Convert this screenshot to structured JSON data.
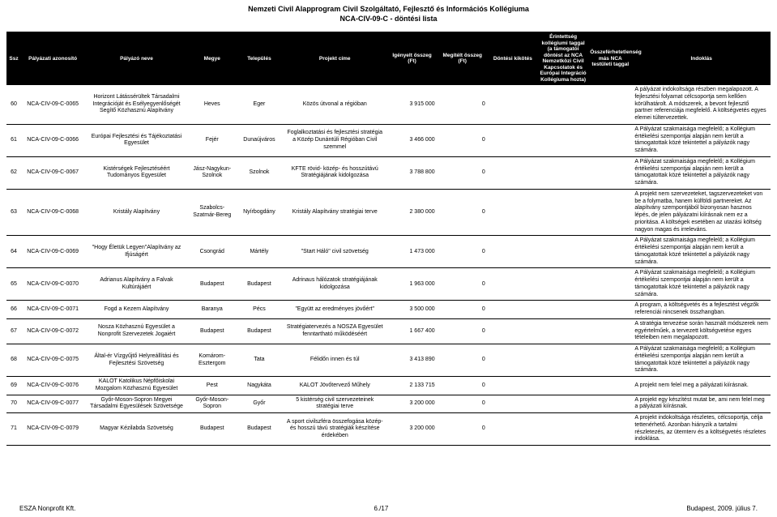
{
  "title_line1": "Nemzeti Civil Alapprogram Civil Szolgáltató, Fejlesztő és Információs Kollégiuma",
  "title_line2": "NCA-CIV-09-C - döntési lista",
  "columns": [
    "Ssz",
    "Pályázati azonosító",
    "Pályázó neve",
    "Megye",
    "Település",
    "Projekt címe",
    "Igényelt összeg (Ft)",
    "Megítélt összeg (Ft)",
    "Döntési kikötés",
    "Érintettség kollégiumi taggal (a támogatói döntést az NCA Nemzetközi Civil Kapcsolatok és Európai Integráció Kollégiuma hozta)",
    "Összeférhetetlenség más NCA testületi taggal",
    "Indoklás"
  ],
  "rows": [
    {
      "ssz": "60",
      "id": "NCA-CIV-09-C-0065",
      "name": "Horizont Látássérültek Társadalmi Integrációját és Esélyegyenlőségét Segítő Közhasznú Alapítvány",
      "megye": "Heves",
      "telepules": "Eger",
      "projekt": "Közös útvonal a régióban",
      "igenyelt": "3 915 000",
      "megitelt": "0",
      "kikotes": "",
      "erint": "",
      "ossz": "",
      "indoklas": "A pályázat indokoltsága részben megalapozott. A fejlesztési folyamat célcsoportja sem kellően körülhatárolt. A módszerek, a bevont fejlesztő partner referenciája megfelelő. A költségvetés egyes elemei túltervezettek."
    },
    {
      "ssz": "61",
      "id": "NCA-CIV-09-C-0066",
      "name": "Európai Fejlesztési és Tájékoztatási Egyesület",
      "megye": "Fejér",
      "telepules": "Dunaújváros",
      "projekt": "Foglalkoztatási és fejlesztési stratégia a Közép Dunántúli Régióban Civil szemmel",
      "igenyelt": "3 466 000",
      "megitelt": "0",
      "kikotes": "",
      "erint": "",
      "ossz": "",
      "indoklas": "A Pályázat szakmaisága megfelelő; a Kollégium értékelési szempontjai alapján nem került a támogatottak közé tekintettel a pályázók nagy számára."
    },
    {
      "ssz": "62",
      "id": "NCA-CIV-09-C-0067",
      "name": "Kistérségek Fejlesztéséért Tudományos Egyesület",
      "megye": "Jász-Nagykun-Szolnok",
      "telepules": "Szolnok",
      "projekt": "KFTE rövid- közép- és hosszútávú Stratégiájának kidolgozása",
      "igenyelt": "3 788 800",
      "megitelt": "0",
      "kikotes": "",
      "erint": "",
      "ossz": "",
      "indoklas": "A Pályázat szakmaisága megfelelő; a Kollégium értékelési szempontjai alapján nem került a támogatottak közé tekintettel a pályázók nagy számára."
    },
    {
      "ssz": "63",
      "id": "NCA-CIV-09-C-0068",
      "name": "Kristály Alapítvány",
      "megye": "Szabolcs-Szatmár-Bereg",
      "telepules": "Nyírbogdány",
      "projekt": "Kristály Alapítvány stratégiai terve",
      "igenyelt": "2 380 000",
      "megitelt": "0",
      "kikotes": "",
      "erint": "",
      "ossz": "",
      "indoklas": "A projekt nem szervezeteket, tagszervezeteket von be a folymatba, hanem külföldi partnereket. Az alapítvány szempontjából bizonyosan hasznos lépés, de jelen pályázatni kiírásnak nem ez a prioritása. A költségek esetében az utazási költség nagyon magas és irreleváns."
    },
    {
      "ssz": "64",
      "id": "NCA-CIV-09-C-0069",
      "name": "\"Hogy Életük Legyen\"Alapítvány az Ifjúságért",
      "megye": "Csongrád",
      "telepules": "Mártély",
      "projekt": "\"Start Háló\" civil szövetség",
      "igenyelt": "1 473 000",
      "megitelt": "0",
      "kikotes": "",
      "erint": "",
      "ossz": "",
      "indoklas": "A Pályázat szakmaisága megfelelő; a Kollégium értékelési szempontjai alapján nem került a támogatottak közé tekintettel a pályázók nagy számára."
    },
    {
      "ssz": "65",
      "id": "NCA-CIV-09-C-0070",
      "name": "Adrianus Alapítvány a Falvak Kultúrájáért",
      "megye": "Budapest",
      "telepules": "Budapest",
      "projekt": "Adrinaus hálózatok stratégiájának kidolgozása",
      "igenyelt": "1 963 000",
      "megitelt": "0",
      "kikotes": "",
      "erint": "",
      "ossz": "",
      "indoklas": "A Pályázat szakmaisága megfelelő; a Kollégium értékelési szempontjai alapján nem került a támogatottak közé tekintettel a pályázók nagy számára."
    },
    {
      "ssz": "66",
      "id": "NCA-CIV-09-C-0071",
      "name": "Fogd a Kezem Alapítvány",
      "megye": "Baranya",
      "telepules": "Pécs",
      "projekt": "\"Együtt az eredményes jövőért\"",
      "igenyelt": "3 500 000",
      "megitelt": "0",
      "kikotes": "",
      "erint": "",
      "ossz": "",
      "indoklas": "A program, a költségvetés és a fejlesztést végzők referenciái nincsenek összhangban."
    },
    {
      "ssz": "67",
      "id": "NCA-CIV-09-C-0072",
      "name": "Nosza Közhasznú Egyesület a Nonprofit Szervezetek Jogaiért",
      "megye": "Budapest",
      "telepules": "Budapest",
      "projekt": "Stratégiatervezés a NOSZA Egyesület fenntartható működéséért",
      "igenyelt": "1 667 400",
      "megitelt": "0",
      "kikotes": "",
      "erint": "",
      "ossz": "",
      "indoklas": "A stratégia tervezése során használt módszerek nem egyértelműek, a tervezett költségvetése egyes tételeiben nem megalapozott."
    },
    {
      "ssz": "68",
      "id": "NCA-CIV-09-C-0075",
      "name": "Által-ér Vízgyűjtő Helyreállítási és Fejlesztési Szövetség",
      "megye": "Komárom-Esztergom",
      "telepules": "Tata",
      "projekt": "Félidőn innen és túl",
      "igenyelt": "3 413 890",
      "megitelt": "0",
      "kikotes": "",
      "erint": "",
      "ossz": "",
      "indoklas": "A Pályázat szakmaisága megfelelő; a Kollégium értékelési szempontjai alapján nem került a támogatottak közé tekintettel a pályázók nagy számára."
    },
    {
      "ssz": "69",
      "id": "NCA-CIV-09-C-0076",
      "name": "KALOT Katolikus Népfőiskolai Mozgalom Közhasznú Egyesület",
      "megye": "Pest",
      "telepules": "Nagykáta",
      "projekt": "KALOT Jövőtervező Műhely",
      "igenyelt": "2 133 715",
      "megitelt": "0",
      "kikotes": "",
      "erint": "",
      "ossz": "",
      "indoklas": "A projekt nem felel meg a pályázati kiírásnak."
    },
    {
      "ssz": "70",
      "id": "NCA-CIV-09-C-0077",
      "name": "Győr-Moson-Sopron Megyei Társadalmi Egyesülések Szövetsége",
      "megye": "Győr-Moson-Sopron",
      "telepules": "Győr",
      "projekt": "5 kistérség civil szervezeteinek stratégiai terve",
      "igenyelt": "3 200 000",
      "megitelt": "0",
      "kikotes": "",
      "erint": "",
      "ossz": "",
      "indoklas": "A projekt egy készítést mutat be, ami nem felel meg a pályázati kiírásnak."
    },
    {
      "ssz": "71",
      "id": "NCA-CIV-09-C-0079",
      "name": "Magyar Kézilabda Szövetség",
      "megye": "Budapest",
      "telepules": "Budapest",
      "projekt": "A sport civilszféra összefogása közép- és hosszú távú stratégiák készítése érdekében",
      "igenyelt": "3 200 000",
      "megitelt": "0",
      "kikotes": "",
      "erint": "",
      "ossz": "",
      "indoklas": "A projekt indokoltsága részletes, célcsoportja, célja tettenérhető. Azonban hiányzik a tartalmi részletezés, az ütemterv és a költségvetés részletes indoklása."
    }
  ],
  "footer_left": "ESZA Nonprofit Kft.",
  "footer_center": "6./17",
  "footer_right": "Budapest, 2009. július 7."
}
